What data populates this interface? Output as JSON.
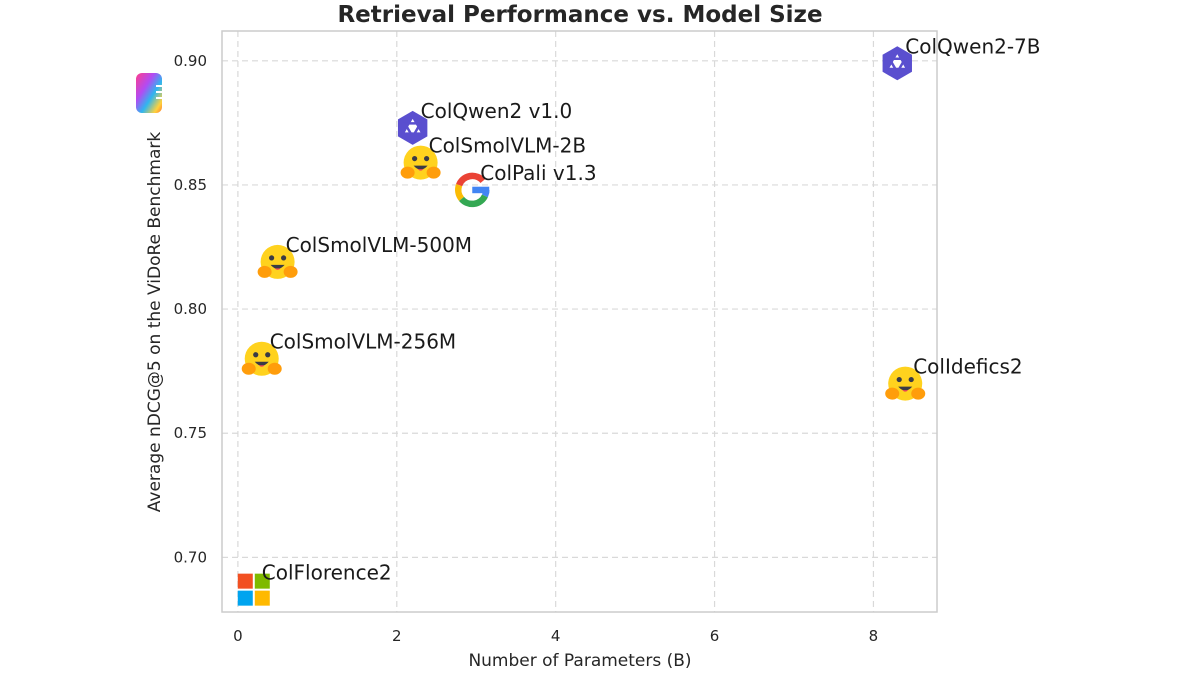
{
  "chart_data": {
    "type": "scatter",
    "title": "Retrieval Performance vs. Model Size",
    "xlabel": "Number of Parameters (B)",
    "ylabel": "Average nDCG@5 on the ViDoRe Benchmark",
    "xlim": [
      -0.2,
      8.8
    ],
    "ylim": [
      0.678,
      0.912
    ],
    "xticks": [
      "0",
      "2",
      "4",
      "6",
      "8"
    ],
    "xtick_values": [
      0,
      2,
      4,
      6,
      8
    ],
    "yticks": [
      "0.70",
      "0.75",
      "0.80",
      "0.85",
      "0.90"
    ],
    "ytick_values": [
      0.7,
      0.75,
      0.8,
      0.85,
      0.9
    ],
    "grid": true,
    "points": [
      {
        "label": "ColQwen2-7B",
        "x": 8.3,
        "y": 0.899,
        "icon": "qwen-icon"
      },
      {
        "label": "ColQwen2 v1.0",
        "x": 2.2,
        "y": 0.873,
        "icon": "qwen-icon"
      },
      {
        "label": "ColSmolVLM-2B",
        "x": 2.3,
        "y": 0.859,
        "icon": "hugging-face-icon"
      },
      {
        "label": "ColPali v1.3",
        "x": 2.95,
        "y": 0.848,
        "icon": "google-icon"
      },
      {
        "label": "ColSmolVLM-500M",
        "x": 0.5,
        "y": 0.819,
        "icon": "hugging-face-icon"
      },
      {
        "label": "ColSmolVLM-256M",
        "x": 0.3,
        "y": 0.78,
        "icon": "hugging-face-icon"
      },
      {
        "label": "ColIdefics2",
        "x": 8.4,
        "y": 0.77,
        "icon": "hugging-face-icon"
      },
      {
        "label": "ColFlorence2",
        "x": 0.2,
        "y": 0.687,
        "icon": "microsoft-icon"
      }
    ]
  },
  "colors": {
    "qwen": "#5a4fcf",
    "hf_face": "#FFD21E",
    "hf_dark": "#3a3b45",
    "hf_hand": "#FF9D0B",
    "google_blue": "#4285F4",
    "google_red": "#EA4335",
    "google_yellow": "#FBBC05",
    "google_green": "#34A853",
    "ms_red": "#F25022",
    "ms_green": "#7FBA00",
    "ms_blue": "#00A4EF",
    "ms_yellow": "#FFB900"
  }
}
